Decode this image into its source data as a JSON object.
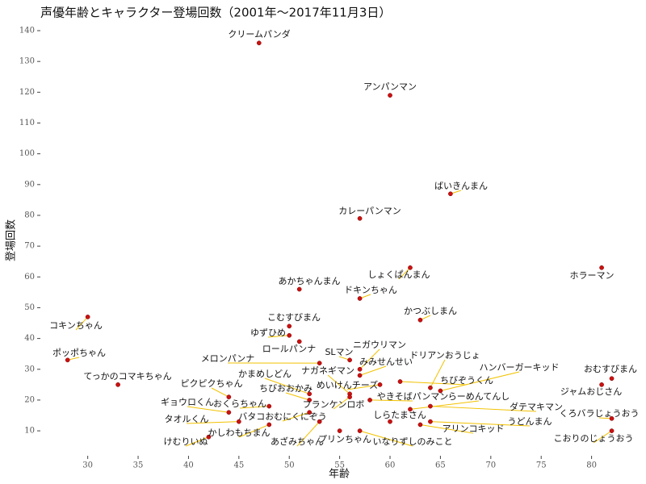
{
  "chart_data": {
    "type": "scatter",
    "title": "声優年齢とキャラクター登場回数（2001年～2017年11月3日）",
    "x_label": "年齢",
    "y_label": "登場回数",
    "color": "#cc1111",
    "label_line_color": "#f2c200",
    "xlim": [
      25.3,
      84.6
    ],
    "ylim": [
      1.9,
      142.1
    ],
    "xticks": [
      30,
      35,
      40,
      45,
      50,
      55,
      60,
      65,
      70,
      75,
      80
    ],
    "yticks": [
      10,
      20,
      30,
      40,
      50,
      60,
      70,
      80,
      90,
      100,
      110,
      120,
      130,
      140
    ],
    "grid": false,
    "labels": [
      "クリームパンダ",
      "アンパンマン",
      "ばいきんまん",
      "カレーパンマン",
      "しょくぱんまん",
      "ホラーマン",
      "あかちゃんまん",
      "ドキンちゃん",
      "かつぶしまん",
      "コキンちゃん",
      "こむすびまん",
      "ゆずひめ",
      "ロールパンナ",
      "ポッポちゃん",
      "SLマン",
      "ニガウリマン",
      "メロンパンナ",
      "みみせんせい",
      "ドリアンおうじょ",
      "ハンバーガーキッド",
      "ちびぞうくん",
      "てっかのコマキちゃん",
      "かまめしどん",
      "ナガネギマン",
      "めいけんチーズ",
      "ピクピクちゃん",
      "ちびおおかみ",
      "やきそばパンマン",
      "らーめんてんし",
      "おむすびまん",
      "ジャムおじさん",
      "おくらちゃん",
      "ギョウロくん",
      "フランケンロボ",
      "ダテマキマン",
      "くろバラじょうおう",
      "こおりのじょうおう",
      "タオルくん",
      "バタコおむにくにぞう",
      "かしわもちまん",
      "しらたまさん",
      "アリンコキッド",
      "うどんまん",
      "あざみちゃん",
      "プリンちゃん",
      "いなりずしのみこと",
      "けむりいぬ"
    ],
    "x": [
      47,
      60,
      66,
      57,
      62,
      81,
      51,
      57,
      63,
      30,
      50,
      50,
      51,
      28,
      56,
      57,
      53,
      57,
      64,
      65,
      61,
      33,
      52,
      56,
      59,
      44,
      52,
      58,
      62,
      82,
      81,
      48,
      44,
      56,
      64,
      82,
      82,
      45,
      52,
      48,
      60,
      63,
      64,
      53,
      55,
      57,
      42
    ],
    "values": [
      136,
      119,
      87,
      79,
      63,
      63,
      56,
      53,
      46,
      47,
      44,
      41,
      39,
      33,
      33,
      30,
      32,
      28,
      24,
      23,
      26,
      25,
      22,
      22,
      25,
      21,
      20,
      20,
      17,
      27,
      25,
      18,
      16,
      21,
      18,
      14,
      10,
      13,
      16,
      12,
      13,
      12,
      13,
      13,
      10,
      10,
      8
    ]
  }
}
